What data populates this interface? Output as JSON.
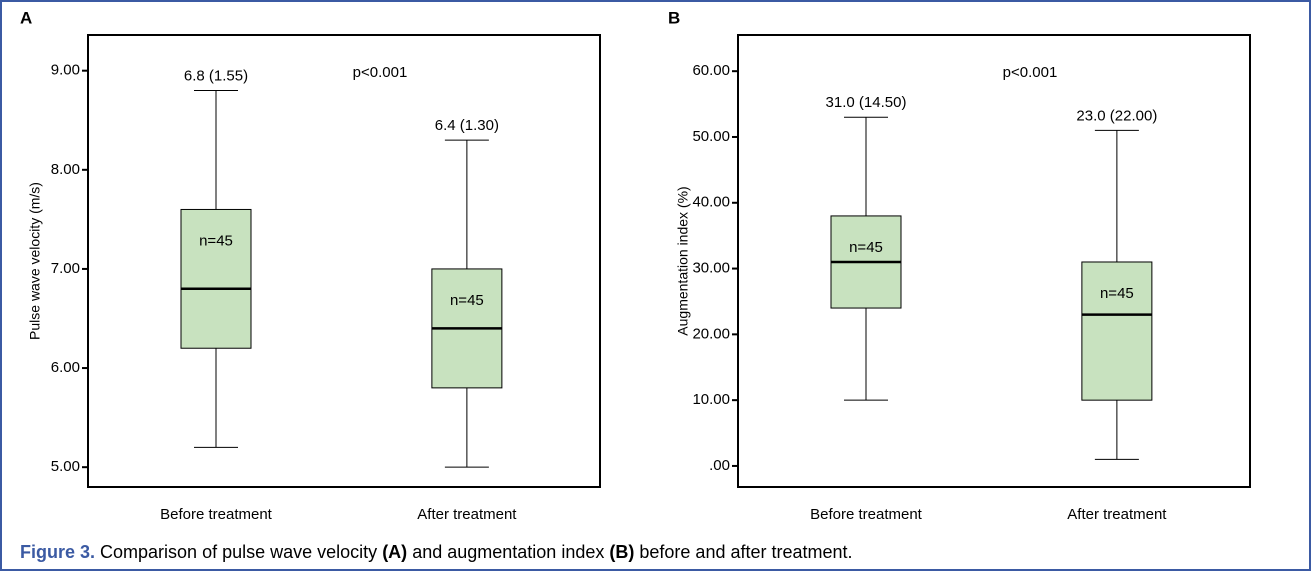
{
  "chart_data": [
    {
      "type": "box",
      "panel": "A",
      "ylabel": "Pulse wave velocity (m/s)",
      "annotation": "p<0.001",
      "categories": [
        "Before treatment",
        "After treatment"
      ],
      "color": "#c8e2bf",
      "boxes": [
        {
          "min": 5.2,
          "q1": 6.2,
          "median": 6.8,
          "q3": 7.6,
          "max": 8.8,
          "label": "6.8 (1.55)",
          "n_label": "n=45"
        },
        {
          "min": 5.0,
          "q1": 5.8,
          "median": 6.4,
          "q3": 7.0,
          "max": 8.3,
          "label": "6.4 (1.30)",
          "n_label": "n=45"
        }
      ],
      "ylim": [
        4.8,
        9.36
      ],
      "yticks": [
        {
          "value": 5,
          "label": "5.00"
        },
        {
          "value": 6,
          "label": "6.00"
        },
        {
          "value": 7,
          "label": "7.00"
        },
        {
          "value": 8,
          "label": "8.00"
        },
        {
          "value": 9,
          "label": "9.00"
        }
      ]
    },
    {
      "type": "box",
      "panel": "B",
      "ylabel": "Augmentation index (%)",
      "annotation": "p<0.001",
      "categories": [
        "Before treatment",
        "After treatment"
      ],
      "color": "#c8e2bf",
      "boxes": [
        {
          "min": 10,
          "q1": 24,
          "median": 31,
          "q3": 38,
          "max": 53,
          "label": "31.0 (14.50)",
          "n_label": "n=45"
        },
        {
          "min": 1,
          "q1": 10,
          "median": 23,
          "q3": 31,
          "max": 51,
          "label": "23.0 (22.00)",
          "n_label": "n=45"
        }
      ],
      "ylim": [
        -3.2,
        65.5
      ],
      "yticks": [
        {
          "value": 0,
          "label": ".00"
        },
        {
          "value": 10,
          "label": "10.00"
        },
        {
          "value": 20,
          "label": "20.00"
        },
        {
          "value": 30,
          "label": "30.00"
        },
        {
          "value": 40,
          "label": "40.00"
        },
        {
          "value": 50,
          "label": "50.00"
        },
        {
          "value": 60,
          "label": "60.00"
        }
      ]
    }
  ],
  "caption": {
    "figure": "Figure 3.",
    "parts": [
      "Comparison of pulse wave velocity",
      "(A)",
      "and augmentation index",
      "(B)",
      "before and after treatment."
    ]
  }
}
